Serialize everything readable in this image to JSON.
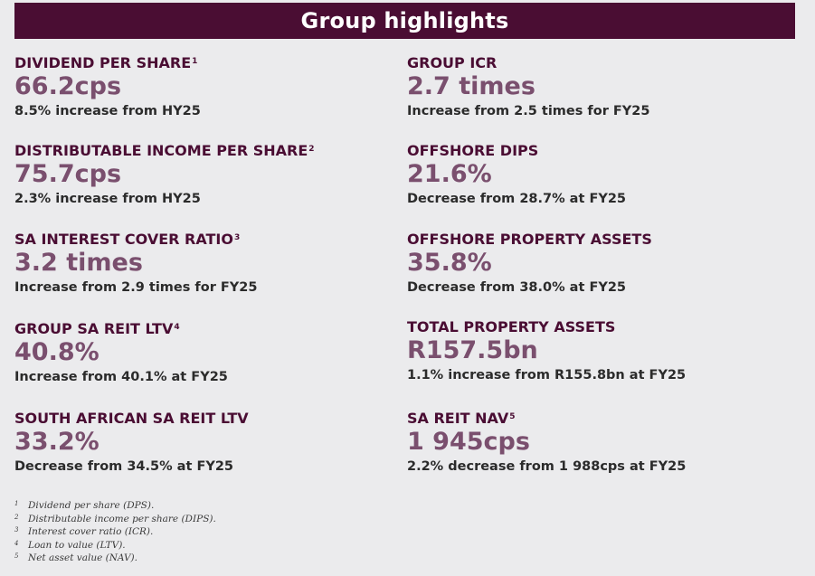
{
  "header": {
    "title": "Group highlights"
  },
  "left_metrics": [
    {
      "label": "DIVIDEND PER SHARE",
      "note": "1",
      "value": "66.2cps",
      "desc": "8.5% increase from HY25"
    },
    {
      "label": "DISTRIBUTABLE INCOME PER SHARE",
      "note": "2",
      "value": "75.7cps",
      "desc": "2.3% increase from HY25"
    },
    {
      "label": "SA INTEREST COVER RATIO",
      "note": "3",
      "value": "3.2 times",
      "desc": "Increase from 2.9 times for FY25"
    },
    {
      "label": "GROUP SA REIT LTV",
      "note": "4",
      "value": "40.8%",
      "desc": "Increase from 40.1% at FY25"
    },
    {
      "label": "SOUTH AFRICAN SA REIT LTV",
      "note": "",
      "value": "33.2%",
      "desc": "Decrease from 34.5% at FY25"
    }
  ],
  "right_metrics": [
    {
      "label": "GROUP ICR",
      "note": "",
      "value": "2.7 times",
      "desc": "Increase from 2.5 times for FY25"
    },
    {
      "label": "OFFSHORE DIPS",
      "note": "",
      "value": "21.6%",
      "desc": "Decrease from 28.7% at FY25"
    },
    {
      "label": "OFFSHORE PROPERTY ASSETS",
      "note": "",
      "value": "35.8%",
      "desc": "Decrease from 38.0% at FY25"
    },
    {
      "label": "TOTAL PROPERTY ASSETS",
      "note": "",
      "value": "R157.5bn",
      "desc": "1.1% increase from R155.8bn at FY25"
    },
    {
      "label": "SA REIT NAV",
      "note": "5",
      "value": "1 945cps",
      "desc": "2.2% decrease from 1 988cps at FY25"
    }
  ],
  "footnotes": [
    {
      "num": "1",
      "text": "Dividend per share (DPS)."
    },
    {
      "num": "2",
      "text": "Distributable income per share (DIPS)."
    },
    {
      "num": "3",
      "text": "Interest cover ratio (ICR)."
    },
    {
      "num": "4",
      "text": "Loan to value (LTV)."
    },
    {
      "num": "5",
      "text": "Net asset value (NAV)."
    }
  ],
  "colors": {
    "banner": "#4a0d33",
    "label": "#4a0d33",
    "value": "#7a4f6e",
    "background": "#ebebed"
  }
}
